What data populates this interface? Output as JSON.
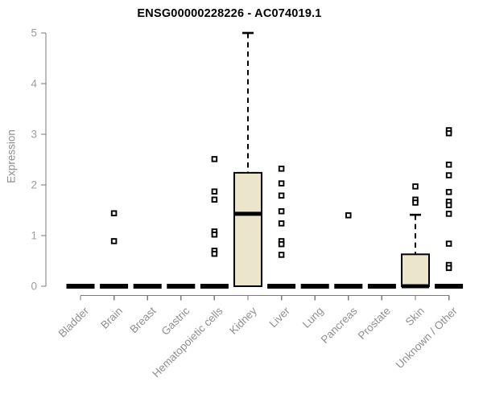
{
  "chart_data": {
    "type": "boxplot",
    "title": "ENSG00000228226 - AC074019.1",
    "ylabel": "Expression",
    "xlabel": "",
    "ylim": [
      0,
      5
    ],
    "yticks": [
      0,
      1,
      2,
      3,
      4,
      5
    ],
    "grid": false,
    "legend": "none",
    "colors": {
      "box_fill": "#ebe5cb",
      "box_stroke": "#000000",
      "median": "#000000",
      "axis_line": "#7a7a7a",
      "tick_label": "#9c9c9c",
      "x_label": "#8f8f8f",
      "title": "#000000",
      "background": "#ffffff"
    },
    "categories": [
      "Bladder",
      "Brain",
      "Breast",
      "Gastric",
      "Hematopoietic cells",
      "Kidney",
      "Liver",
      "Lung",
      "Pancreas",
      "Prostate",
      "Skin",
      "Unknown / Other"
    ],
    "series": [
      {
        "category": "Bladder",
        "q1": 0,
        "median": 0,
        "q3": 0,
        "whisker_low": 0,
        "whisker_high": 0,
        "outliers": []
      },
      {
        "category": "Brain",
        "q1": 0,
        "median": 0,
        "q3": 0,
        "whisker_low": 0,
        "whisker_high": 0,
        "outliers": [
          1.44,
          0.89
        ]
      },
      {
        "category": "Breast",
        "q1": 0,
        "median": 0,
        "q3": 0,
        "whisker_low": 0,
        "whisker_high": 0,
        "outliers": []
      },
      {
        "category": "Gastric",
        "q1": 0,
        "median": 0,
        "q3": 0,
        "whisker_low": 0,
        "whisker_high": 0,
        "outliers": []
      },
      {
        "category": "Hematopoietic cells",
        "q1": 0,
        "median": 0,
        "q3": 0,
        "whisker_low": 0,
        "whisker_high": 0,
        "outliers": [
          2.51,
          1.87,
          1.71,
          1.08,
          1.02,
          0.7,
          0.64
        ]
      },
      {
        "category": "Kidney",
        "q1": 0,
        "median": 1.43,
        "q3": 2.24,
        "whisker_low": 0,
        "whisker_high": 5.0,
        "outliers": []
      },
      {
        "category": "Liver",
        "q1": 0,
        "median": 0,
        "q3": 0,
        "whisker_low": 0,
        "whisker_high": 0,
        "outliers": [
          2.32,
          2.03,
          1.79,
          1.48,
          1.24,
          0.89,
          0.83,
          0.62
        ]
      },
      {
        "category": "Lung",
        "q1": 0,
        "median": 0,
        "q3": 0,
        "whisker_low": 0,
        "whisker_high": 0,
        "outliers": []
      },
      {
        "category": "Pancreas",
        "q1": 0,
        "median": 0,
        "q3": 0,
        "whisker_low": 0,
        "whisker_high": 0,
        "outliers": [
          1.4
        ]
      },
      {
        "category": "Prostate",
        "q1": 0,
        "median": 0,
        "q3": 0,
        "whisker_low": 0,
        "whisker_high": 0,
        "outliers": []
      },
      {
        "category": "Skin",
        "q1": 0,
        "median": 0,
        "q3": 0.63,
        "whisker_low": 0,
        "whisker_high": 1.41,
        "outliers": [
          1.97,
          1.71,
          1.65
        ]
      },
      {
        "category": "Unknown / Other",
        "q1": 0,
        "median": 0,
        "q3": 0,
        "whisker_low": 0,
        "whisker_high": 0,
        "outliers": [
          3.08,
          3.02,
          2.4,
          2.19,
          1.86,
          1.67,
          1.6,
          1.43,
          0.84,
          0.42,
          0.36
        ]
      }
    ]
  }
}
